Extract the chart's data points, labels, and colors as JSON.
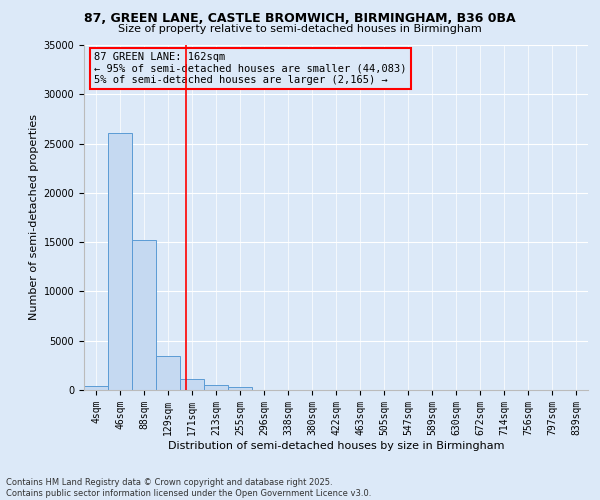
{
  "title_line1": "87, GREEN LANE, CASTLE BROMWICH, BIRMINGHAM, B36 0BA",
  "title_line2": "Size of property relative to semi-detached houses in Birmingham",
  "xlabel": "Distribution of semi-detached houses by size in Birmingham",
  "ylabel": "Number of semi-detached properties",
  "bin_labels": [
    "4sqm",
    "46sqm",
    "88sqm",
    "129sqm",
    "171sqm",
    "213sqm",
    "255sqm",
    "296sqm",
    "338sqm",
    "380sqm",
    "422sqm",
    "463sqm",
    "505sqm",
    "547sqm",
    "589sqm",
    "630sqm",
    "672sqm",
    "714sqm",
    "756sqm",
    "797sqm",
    "839sqm"
  ],
  "bar_values": [
    400,
    26100,
    15200,
    3400,
    1100,
    500,
    300,
    0,
    0,
    0,
    0,
    0,
    0,
    0,
    0,
    0,
    0,
    0,
    0,
    0,
    0
  ],
  "bar_color": "#c5d9f1",
  "bar_edge_color": "#5b9bd5",
  "annotation_text": "87 GREEN LANE: 162sqm\n← 95% of semi-detached houses are smaller (44,083)\n5% of semi-detached houses are larger (2,165) →",
  "vline_x_index": 3.75,
  "ylim": [
    0,
    35000
  ],
  "yticks": [
    0,
    5000,
    10000,
    15000,
    20000,
    25000,
    30000,
    35000
  ],
  "ytick_labels": [
    "0",
    "5000",
    "10000",
    "15000",
    "20000",
    "25000",
    "30000",
    "35000"
  ],
  "footer_line1": "Contains HM Land Registry data © Crown copyright and database right 2025.",
  "footer_line2": "Contains public sector information licensed under the Open Government Licence v3.0.",
  "bg_color": "#dce9f8",
  "plot_bg_color": "#dce9f8",
  "grid_color": "#ffffff",
  "annot_fontsize": 7.5,
  "title1_fontsize": 9,
  "title2_fontsize": 8,
  "ylabel_fontsize": 8,
  "xlabel_fontsize": 8,
  "tick_fontsize": 7,
  "footer_fontsize": 6
}
